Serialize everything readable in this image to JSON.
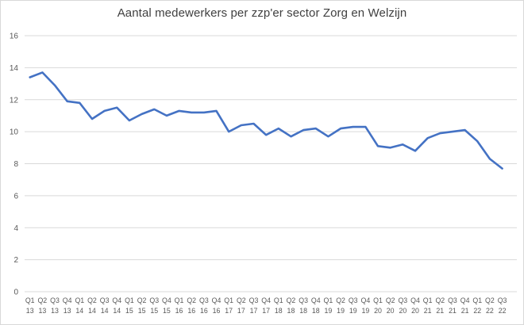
{
  "chart": {
    "title": "Aantal medewerkers per zzp'er sector Zorg en Welzijn"
  },
  "chart_data": {
    "type": "line",
    "title": "Aantal medewerkers per zzp'er sector Zorg en Welzijn",
    "xlabel": "",
    "ylabel": "",
    "x_quarters": [
      "Q1",
      "Q2",
      "Q3",
      "Q4",
      "Q1",
      "Q2",
      "Q3",
      "Q4",
      "Q1",
      "Q2",
      "Q3",
      "Q4",
      "Q1",
      "Q2",
      "Q3",
      "Q4",
      "Q1",
      "Q2",
      "Q3",
      "Q4",
      "Q1",
      "Q2",
      "Q3",
      "Q4",
      "Q1",
      "Q2",
      "Q3",
      "Q4",
      "Q1",
      "Q2",
      "Q3",
      "Q4",
      "Q1",
      "Q2",
      "Q3",
      "Q4",
      "Q1",
      "Q2",
      "Q3"
    ],
    "x_years": [
      "13",
      "13",
      "13",
      "13",
      "14",
      "14",
      "14",
      "14",
      "15",
      "15",
      "15",
      "15",
      "16",
      "16",
      "16",
      "16",
      "17",
      "17",
      "17",
      "17",
      "18",
      "18",
      "18",
      "18",
      "19",
      "19",
      "19",
      "19",
      "20",
      "20",
      "20",
      "20",
      "21",
      "21",
      "21",
      "21",
      "22",
      "22",
      "22"
    ],
    "values": [
      13.4,
      13.7,
      12.9,
      11.9,
      11.8,
      10.8,
      11.3,
      11.5,
      10.7,
      11.1,
      11.4,
      11.0,
      11.3,
      11.2,
      11.2,
      11.3,
      10.0,
      10.4,
      10.5,
      9.8,
      10.2,
      9.7,
      10.1,
      10.2,
      9.7,
      10.2,
      10.3,
      10.3,
      9.1,
      9.0,
      9.2,
      8.8,
      9.6,
      9.9,
      10.0,
      10.1,
      9.4,
      8.3,
      7.7
    ],
    "ylim": [
      0,
      16
    ],
    "yticks": [
      0,
      2,
      4,
      6,
      8,
      10,
      12,
      14,
      16
    ],
    "grid": "horizontal",
    "legend_position": "none",
    "series_name": "Aantal medewerkers per zzp'er",
    "colors": {
      "line": "#4472C4",
      "gridline": "#D9D9D9",
      "tick_text": "#595959",
      "title_text": "#404040",
      "frame_border": "#D9D9D9",
      "background": "#FFFFFF"
    }
  }
}
